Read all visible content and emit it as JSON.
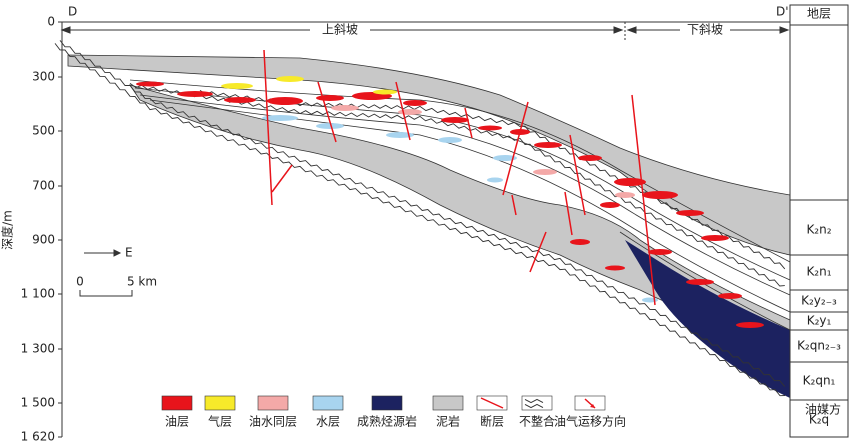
{
  "section": {
    "start_label": "D",
    "end_label": "D'",
    "zones": [
      "上斜坡",
      "下斜坡"
    ],
    "depth_axis": {
      "label": "深度/m",
      "ticks": [
        "0",
        "300",
        "500",
        "700",
        "900",
        "1 100",
        "1 300",
        "1 500",
        "1 620"
      ]
    },
    "direction": "E",
    "scale": {
      "start": "0",
      "end": "5 km"
    },
    "strata": {
      "header": "地层",
      "units": [
        "K₂n₂",
        "K₂n₁",
        "K₂y₂₋₃",
        "K₂y₁",
        "K₂qn₂₋₃",
        "K₂qn₁",
        "K₂q"
      ]
    },
    "legend": [
      "油层",
      "气层",
      "油水同层",
      "水层",
      "成熟烃源岩",
      "泥岩",
      "断层",
      "不整合",
      "油气运移方向"
    ],
    "watermark": "油媒方"
  }
}
